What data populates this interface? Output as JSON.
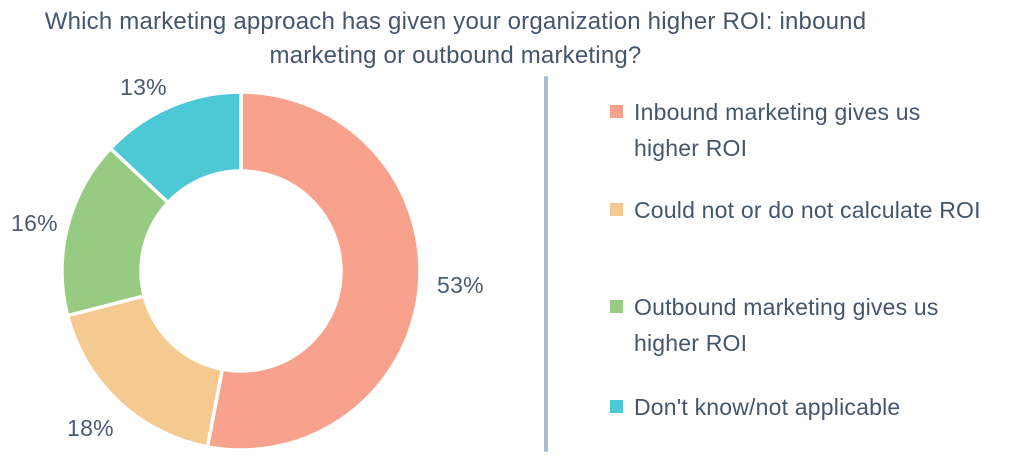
{
  "chart_data": {
    "type": "pie",
    "subtype": "donut",
    "title": "Which marketing approach has given your organization higher ROI: inbound marketing or outbound marketing?",
    "direction": "clockwise",
    "start_angle_deg": 0,
    "legend_position": "right",
    "hole_ratio": 0.56,
    "slices": [
      {
        "label": "Inbound marketing gives us higher ROI",
        "value": 53,
        "pct_label": "53%",
        "color": "#F8A18C"
      },
      {
        "label": "Could not or do not calculate ROI",
        "value": 18,
        "pct_label": "18%",
        "color": "#F5CA90"
      },
      {
        "label": "Outbound marketing gives us higher ROI",
        "value": 16,
        "pct_label": "16%",
        "color": "#96CB81"
      },
      {
        "label": "Don't know/not applicable",
        "value": 13,
        "pct_label": "13%",
        "color": "#4CC9D4"
      }
    ]
  },
  "legend": {
    "items": [
      {
        "label": "Inbound marketing gives us\nhigher ROI",
        "color": "#F8A18C"
      },
      {
        "label": "Could not or do not calculate ROI",
        "color": "#F5CA90"
      },
      {
        "label": "Outbound marketing gives us\nhigher ROI",
        "color": "#96CB81"
      },
      {
        "label": "Don't know/not applicable",
        "color": "#4CC9D4"
      }
    ]
  },
  "style": {
    "slice_gap_color": "#ffffff",
    "text_color": "#44566B",
    "divider_color": "#A8BBCF"
  }
}
